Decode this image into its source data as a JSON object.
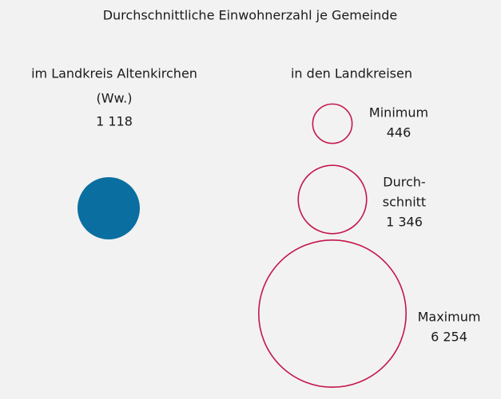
{
  "chart_data": {
    "type": "bubble",
    "title": "Durchschnittliche Einwohnerzahl je Gemeinde",
    "series": [
      {
        "name": [
          "im Landkreis Altenkirchen",
          "(Ww.)"
        ],
        "color": "#0a6fa0",
        "filled": true,
        "categories": [
          null
        ],
        "values": [
          1118
        ],
        "value_labels": [
          "1 118"
        ]
      },
      {
        "name": [
          "in den Landkreisen"
        ],
        "color": "#c4174b",
        "filled": false,
        "categories": [
          [
            "Minimum"
          ],
          [
            "Durch-",
            "schnitt"
          ],
          [
            "Maximum"
          ]
        ],
        "values": [
          446,
          1346,
          6254
        ],
        "value_labels": [
          "446",
          "1 346",
          "6 254"
        ]
      }
    ]
  }
}
